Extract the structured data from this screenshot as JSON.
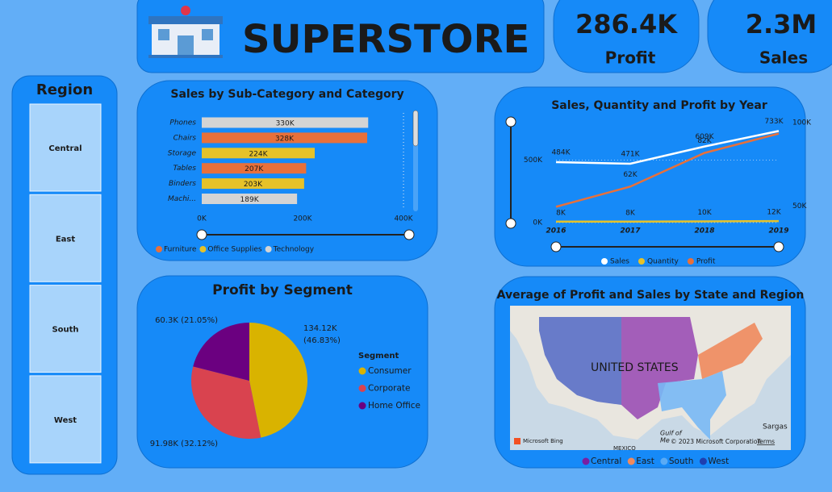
{
  "header": {
    "title": "SUPERSTORE"
  },
  "kpis": [
    {
      "value": "286.4K",
      "label": "Profit"
    },
    {
      "value": "2.3M",
      "label": "Sales"
    }
  ],
  "slicer": {
    "title": "Region",
    "items": [
      "Central",
      "East",
      "South",
      "West"
    ]
  },
  "chart_data": [
    {
      "type": "hbar",
      "title": "Sales by Sub-Category and Category",
      "categories": [
        "Phones",
        "Chairs",
        "Storage",
        "Tables",
        "Binders",
        "Machi..."
      ],
      "values": [
        330000,
        328000,
        224000,
        207000,
        203000,
        189000
      ],
      "value_labels": [
        "330K",
        "328K",
        "224K",
        "207K",
        "203K",
        "189K"
      ],
      "colors": [
        "#d4d4d4",
        "#e8703a",
        "#e6c229",
        "#e8703a",
        "#e6c229",
        "#d4d4d4"
      ],
      "xlim": [
        0,
        400000
      ],
      "xticks": [
        {
          "value": 0,
          "label": "0K"
        },
        {
          "value": 200000,
          "label": "200K"
        },
        {
          "value": 400000,
          "label": "400K"
        }
      ],
      "legend": [
        {
          "name": "Furniture",
          "color": "#e8703a"
        },
        {
          "name": "Office Supplies",
          "color": "#e6c229"
        },
        {
          "name": "Technology",
          "color": "#d4d4d4"
        }
      ]
    },
    {
      "type": "line",
      "title": "Sales, Quantity and Profit by Year",
      "x": [
        2016,
        2017,
        2018,
        2019
      ],
      "xlim": [
        2016,
        2019
      ],
      "ylim": [
        0,
        800000
      ],
      "yticks": [
        {
          "value": 0,
          "label": "0K"
        },
        {
          "value": 500000,
          "label": "500K"
        }
      ],
      "y2lim": [
        40000,
        100000
      ],
      "y2ticks": [
        {
          "value": 50000,
          "label": "50K"
        },
        {
          "value": 100000,
          "label": "100K"
        }
      ],
      "series": [
        {
          "name": "Sales",
          "color": "#ffffff",
          "values": [
            484000,
            471000,
            609000,
            733000
          ],
          "value_labels": [
            "484K",
            "471K",
            "609K",
            "733K"
          ]
        },
        {
          "name": "Quantity",
          "color": "#e6c229",
          "values": [
            8000,
            8000,
            10000,
            12000
          ],
          "value_labels": [
            "8K",
            "8K",
            "10K",
            "12K"
          ]
        },
        {
          "name": "Profit",
          "color": "#e8703a",
          "axis": "y2",
          "values": [
            49500,
            61600,
            81800,
            93400
          ],
          "value_labels": [
            null,
            "62K",
            "82K",
            null
          ]
        }
      ]
    },
    {
      "type": "pie",
      "title": "Profit by Segment",
      "categories": [
        "Consumer",
        "Corporate",
        "Home Office"
      ],
      "values": [
        134120,
        91980,
        60300
      ],
      "value_labels": [
        "134.12K (46.83%)",
        "91.98K (32.12%)",
        "60.3K (21.05%)"
      ],
      "colors": [
        "#d9b300",
        "#d9434f",
        "#6b0080"
      ],
      "legend_title": "Segment"
    },
    {
      "type": "map",
      "title": "Average of Profit and Sales by State and Region",
      "labels": [
        "UNITED STATES",
        "Microsoft Bing",
        "© 2023 Microsoft Corporation",
        "Terms",
        "Gulf of",
        "Me",
        "Sargas",
        "MEXICO"
      ],
      "legend": [
        {
          "name": "Central",
          "color": "#7a1fa2"
        },
        {
          "name": "East",
          "color": "#f08a5d"
        },
        {
          "name": "South",
          "color": "#5aabf5"
        },
        {
          "name": "West",
          "color": "#1f3fb0"
        }
      ]
    }
  ]
}
